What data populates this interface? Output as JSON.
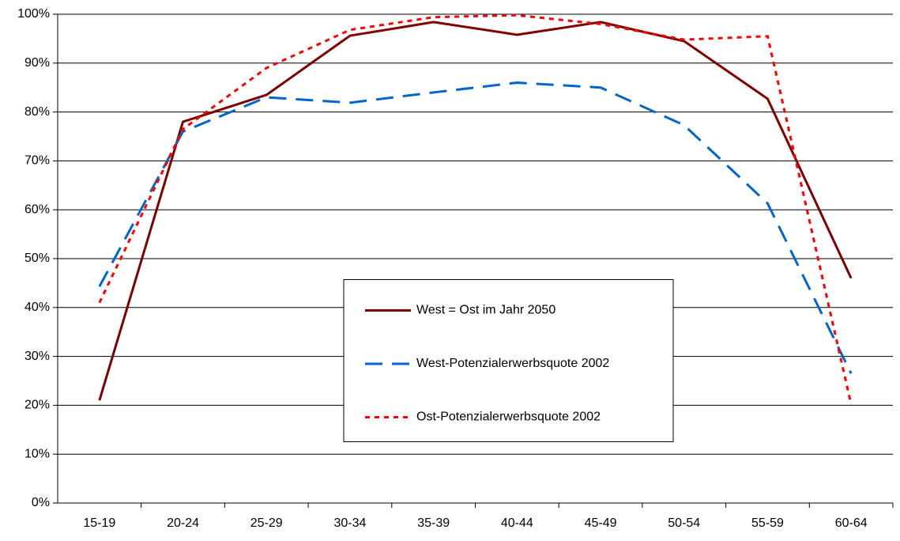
{
  "chart_data": {
    "type": "line",
    "categories": [
      "15-19",
      "20-24",
      "25-29",
      "30-34",
      "35-39",
      "40-44",
      "45-49",
      "50-54",
      "55-59",
      "60-64"
    ],
    "series": [
      {
        "name": "West = Ost im Jahr 2050",
        "color": "#800000",
        "dash": "solid",
        "values": [
          21,
          78,
          83.5,
          95.6,
          98.4,
          95.8,
          98.4,
          94.5,
          82.7,
          46
        ]
      },
      {
        "name": "West-Potenzialerwerbsquote 2002",
        "color": "#0066cc",
        "dash": "dashed",
        "values": [
          44.3,
          76,
          83,
          81.9,
          84,
          86,
          85,
          77.3,
          61.3,
          26.5
        ]
      },
      {
        "name": "Ost-Potenzialerwerbsquote 2002",
        "color": "#ff0000",
        "dash": "dotted",
        "values": [
          41,
          76.5,
          89,
          96.8,
          99.4,
          99.8,
          98,
          94.8,
          95.5,
          20.2
        ]
      }
    ],
    "ylim": [
      0,
      100
    ],
    "yticks": [
      {
        "value": 0,
        "label": "0%"
      },
      {
        "value": 10,
        "label": "10%"
      },
      {
        "value": 20,
        "label": "20%"
      },
      {
        "value": 30,
        "label": "30%"
      },
      {
        "value": 40,
        "label": "40%"
      },
      {
        "value": 50,
        "label": "50%"
      },
      {
        "value": 60,
        "label": "60%"
      },
      {
        "value": 70,
        "label": "70%"
      },
      {
        "value": 80,
        "label": "80%"
      },
      {
        "value": 90,
        "label": "90%"
      },
      {
        "value": 100,
        "label": "100%"
      }
    ],
    "grid": true,
    "legend": "center"
  }
}
